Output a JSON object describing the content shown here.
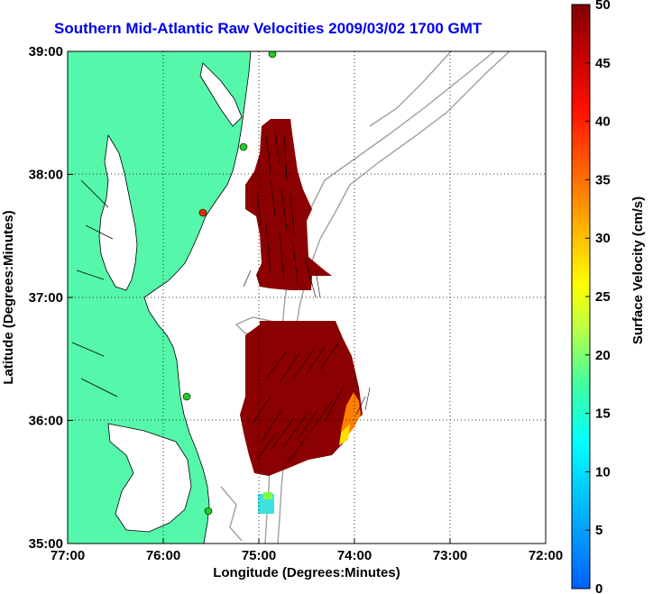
{
  "title": "Southern Mid-Atlantic Raw Velocities 2009/03/02 1700 GMT",
  "xlabel": "Longitude (Degrees:Minutes)",
  "ylabel": "Latitude (Degrees:Minutes)",
  "x_ticks": [
    "77:00",
    "76:00",
    "75:00",
    "74:00",
    "73:00",
    "72:00"
  ],
  "y_ticks": [
    "39:00",
    "38:00",
    "37:00",
    "36:00",
    "35:00"
  ],
  "colorbar": {
    "label": "Surface Velocity (cm/s)",
    "ticks": [
      "50",
      "45",
      "40",
      "35",
      "30",
      "25",
      "20",
      "15",
      "10",
      "5",
      "0"
    ],
    "range": [
      0,
      50
    ]
  },
  "colors": {
    "land": "#55f7aa",
    "water": "#ffffff",
    "coast": "#000000",
    "bathymetry": "#a0a0a0",
    "title": "#0000ee",
    "vector_field": "#8b0000",
    "station": "#22cc22"
  },
  "map": {
    "lon_range": [
      -77,
      -72
    ],
    "lat_range": [
      35,
      39
    ],
    "grid": true
  }
}
